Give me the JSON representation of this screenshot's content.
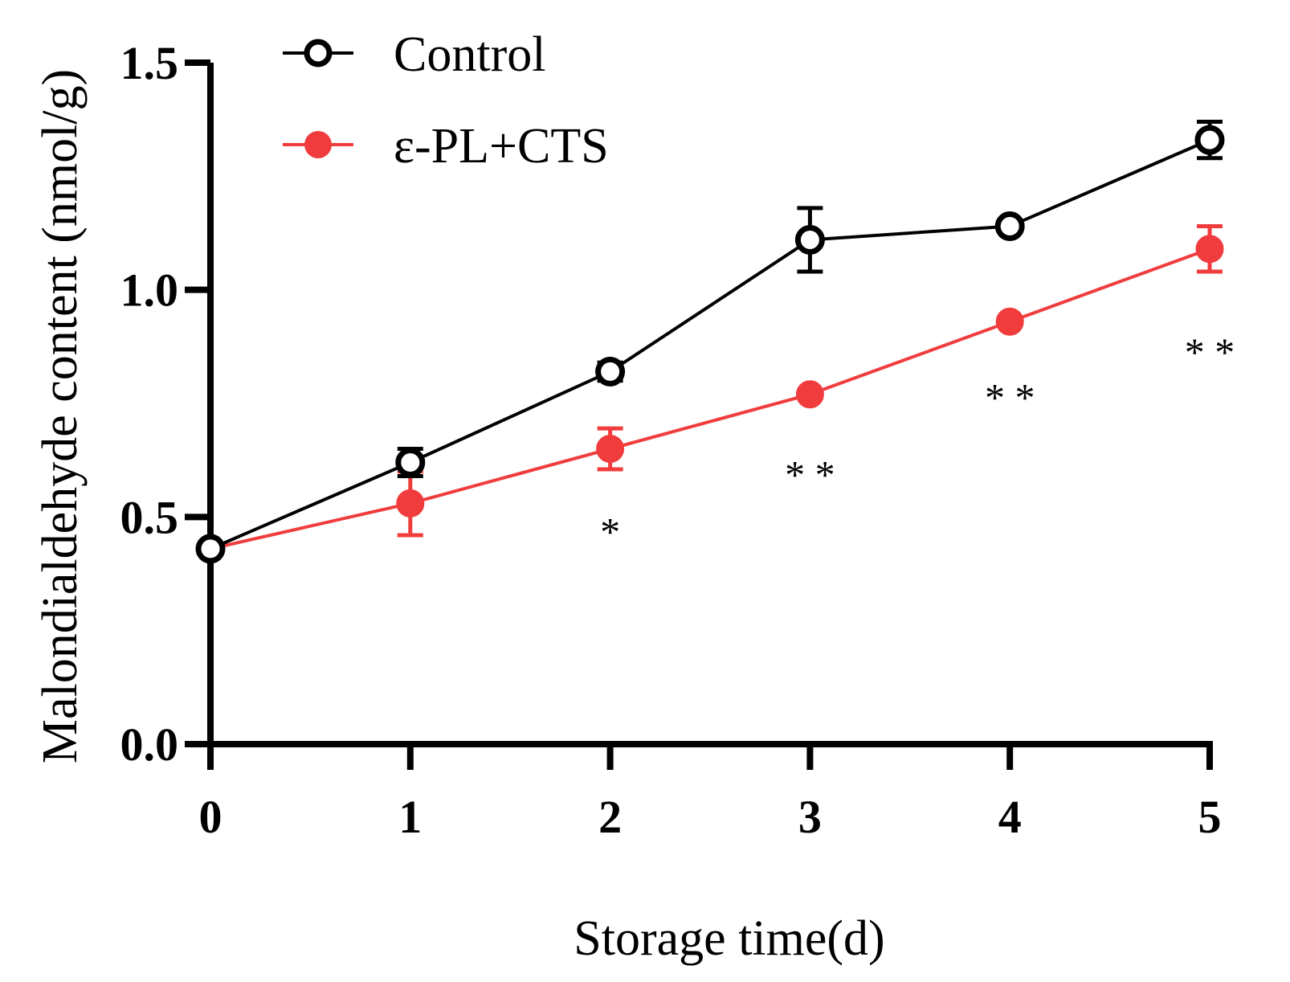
{
  "chart_data": {
    "type": "line",
    "title": "",
    "xlabel": "Storage time(d)",
    "ylabel": "Malondialdehyde content (nmol/g)",
    "x": [
      0,
      1,
      2,
      3,
      4,
      5
    ],
    "x_tick_labels": [
      "0",
      "1",
      "2",
      "3",
      "4",
      "5"
    ],
    "ylim": [
      0,
      1.5
    ],
    "y_ticks": [
      0.0,
      0.5,
      1.0,
      1.5
    ],
    "y_tick_labels": [
      "0.0",
      "0.5",
      "1.0",
      "1.5"
    ],
    "grid": false,
    "legend_position": "top-left",
    "series": [
      {
        "name": "Control",
        "color": "#000000",
        "marker": "open-circle",
        "values": [
          0.43,
          0.62,
          0.82,
          1.11,
          1.14,
          1.33
        ],
        "errors": [
          0.01,
          0.03,
          0.02,
          0.07,
          0.01,
          0.04
        ]
      },
      {
        "name": "ε-PL+CTS",
        "color": "#f03c3c",
        "marker": "filled-circle",
        "values": [
          0.43,
          0.53,
          0.65,
          0.77,
          0.93,
          1.09
        ],
        "errors": [
          0.01,
          0.07,
          0.045,
          0.01,
          0.01,
          0.05
        ]
      }
    ],
    "annotations": [
      {
        "x": 2,
        "y": 0.47,
        "text": "*"
      },
      {
        "x": 3,
        "y": 0.595,
        "text": "* *"
      },
      {
        "x": 4,
        "y": 0.765,
        "text": "* *"
      },
      {
        "x": 5,
        "y": 0.865,
        "text": "* *"
      }
    ]
  }
}
